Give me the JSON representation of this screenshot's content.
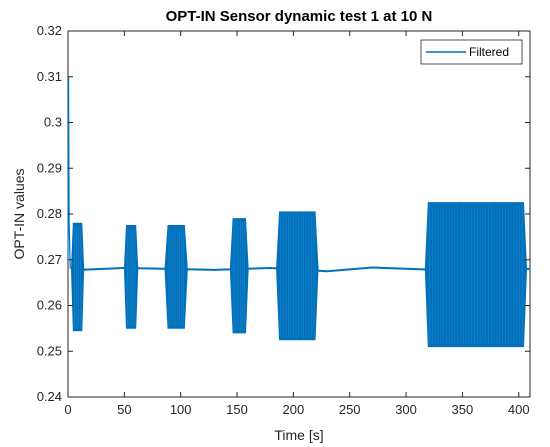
{
  "chart_data": {
    "type": "line",
    "title": "OPT-IN Sensor dynamic test 1 at 10 N",
    "xlabel": "Time [s]",
    "ylabel": "OPT-IN values",
    "xlim": [
      0,
      410
    ],
    "ylim": [
      0.24,
      0.32
    ],
    "x_ticks": [
      0,
      50,
      100,
      150,
      200,
      250,
      300,
      350,
      400
    ],
    "y_ticks": [
      0.24,
      0.25,
      0.26,
      0.27,
      0.28,
      0.29,
      0.3,
      0.31,
      0.32
    ],
    "x_tick_labels": [
      "0",
      "50",
      "100",
      "150",
      "200",
      "250",
      "300",
      "350",
      "400"
    ],
    "y_tick_labels": [
      "0.24",
      "0.25",
      "0.26",
      "0.27",
      "0.28",
      "0.29",
      "0.3",
      "0.31",
      "0.32"
    ],
    "grid": false,
    "legend_position": "top-right",
    "series": [
      {
        "name": "Filtered",
        "color": "#0072bd",
        "initial_spike": [
          {
            "x": 0,
            "y": 0.27
          },
          {
            "x": 0.5,
            "y": 0.31
          },
          {
            "x": 1,
            "y": 0.278
          },
          {
            "x": 2,
            "y": 0.268
          }
        ],
        "baseline": [
          {
            "x": 10,
            "y": 0.2678
          },
          {
            "x": 50,
            "y": 0.2682
          },
          {
            "x": 90,
            "y": 0.268
          },
          {
            "x": 130,
            "y": 0.2678
          },
          {
            "x": 180,
            "y": 0.2682
          },
          {
            "x": 230,
            "y": 0.2675
          },
          {
            "x": 270,
            "y": 0.2683
          },
          {
            "x": 315,
            "y": 0.2679
          },
          {
            "x": 410,
            "y": 0.268
          }
        ],
        "oscillation_bursts": [
          {
            "x_start": 3,
            "x_end": 14,
            "y_min": 0.2545,
            "y_max": 0.278
          },
          {
            "x_start": 50,
            "x_end": 62,
            "y_min": 0.255,
            "y_max": 0.2775
          },
          {
            "x_start": 86,
            "x_end": 106,
            "y_min": 0.255,
            "y_max": 0.2775
          },
          {
            "x_start": 144,
            "x_end": 160,
            "y_min": 0.254,
            "y_max": 0.279
          },
          {
            "x_start": 185,
            "x_end": 222,
            "y_min": 0.2525,
            "y_max": 0.2805
          },
          {
            "x_start": 317,
            "x_end": 407,
            "y_min": 0.251,
            "y_max": 0.2825
          }
        ]
      }
    ]
  }
}
